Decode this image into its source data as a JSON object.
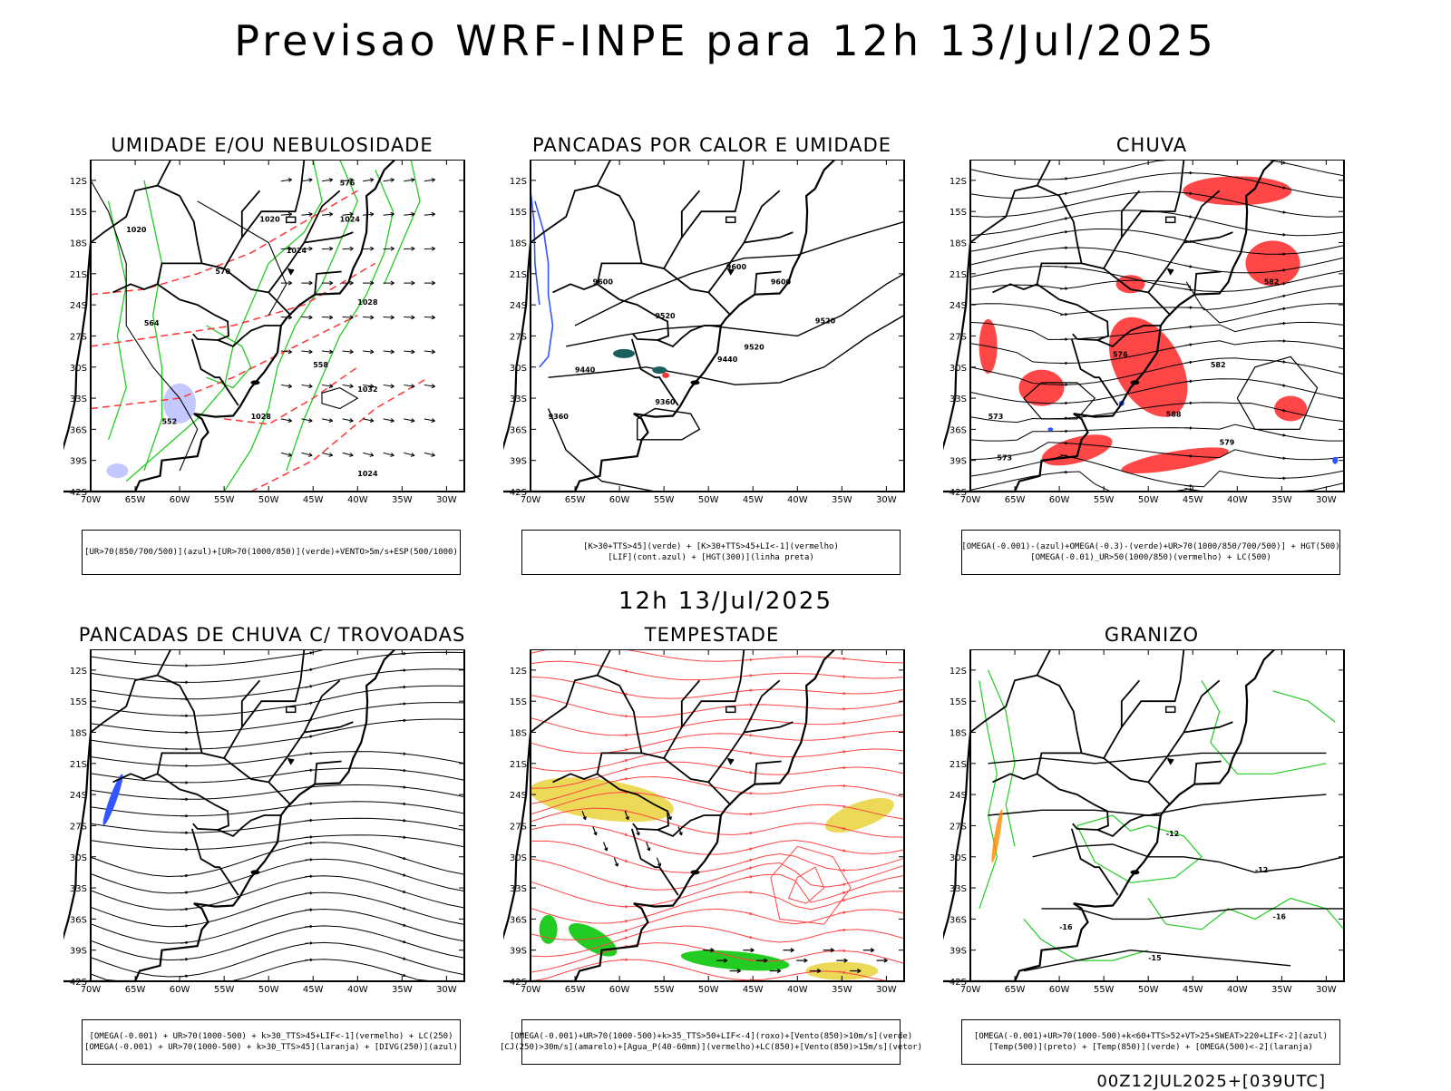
{
  "page": {
    "title": "Previsao WRF-INPE  para 12h 13/Jul/2025",
    "subtitle": "12h 13/Jul/2025",
    "footer": "00Z12JUL2025+[039UTC]"
  },
  "axes": {
    "lat_labels": [
      "12S",
      "15S",
      "18S",
      "21S",
      "24S",
      "27S",
      "30S",
      "33S",
      "36S",
      "39S",
      "42S"
    ],
    "lon_labels": [
      "70W",
      "65W",
      "60W",
      "55W",
      "50W",
      "45W",
      "40W",
      "35W",
      "30W"
    ]
  },
  "panels": [
    {
      "title": "UMIDADE E/OU NEBULOSIDADE",
      "caption": [
        "[UR>70(850/700/500)](azul)+[UR>70(1000/850)](verde)+VENTO>5m/s+ESP(500/1000)"
      ],
      "labels": [
        "1020",
        "1020",
        "1024",
        "1024",
        "1028",
        "1032",
        "1028",
        "1024",
        "570",
        "576",
        "564",
        "558",
        "552"
      ],
      "colors": {
        "isobar": "#000000",
        "humid_low": "#22cc22",
        "humid_high": "#3355ff",
        "thickness": "#ff3333",
        "shade": "#aab0ff"
      }
    },
    {
      "title": "PANCADAS POR CALOR E UMIDADE",
      "caption": [
        "[K>30+TTS>45](verde) + [K>30+TTS>45+LI<-1](vermelho)",
        "[LIF](cont.azul) + [HGT(300)](linha preta)"
      ],
      "labels": [
        "9600",
        "9600",
        "9600",
        "9520",
        "9520",
        "9440",
        "9440",
        "9360",
        "9360",
        "9520"
      ],
      "colors": {
        "hgt": "#000000",
        "lif": "#3355ff",
        "convection": "#1b5e5e",
        "instab": "#ff3333"
      }
    },
    {
      "title": "CHUVA",
      "caption": [
        "[OMEGA(-0.001)-(azul)+OMEGA(-0.3)-(verde)+UR>70(1000/850/700/500)] + HGT(500)",
        "[OMEGA(-0.01)_UR>50(1000/850)(vermelho) + LC(500)"
      ],
      "labels": [
        "582",
        "588",
        "573",
        "576",
        "582",
        "579",
        "573"
      ],
      "colors": {
        "rain": "#ff3333",
        "stream": "#000000",
        "omega": "#3355ff"
      }
    },
    {
      "title": "PANCADAS DE CHUVA C/ TROVOADAS",
      "caption": [
        "[OMEGA(-0.001) + UR>70(1000-500) + k>30_TTS>45+LIF<-1](vermelho) + LC(250)",
        "[OMEGA(-0.001) + UR>70(1000-500) + k>30_TTS>45](laranja) + [DIVG(250)](azul)"
      ],
      "labels": [],
      "colors": {
        "stream": "#000000",
        "divg": "#3355ff"
      }
    },
    {
      "title": "TEMPESTADE",
      "caption": [
        "[OMEGA(-0.001)+UR>70(1000-500)+k>35_TTS>50+LIF<-4](roxo)+[Vento(850)>10m/s](verde)",
        "[CJ(250)>30m/s](amarelo)+[Agua_P(40-60mm)](vermelho)+LC(850)+[Vento(850)>15m/s](vetor)"
      ],
      "labels": [],
      "colors": {
        "stream": "#ff4444",
        "jet": "#e8d23a",
        "wind": "#22cc22",
        "vector": "#000000"
      }
    },
    {
      "title": "GRANIZO",
      "caption": [
        "[OMEGA(-0.001)+UR>70(1000-500)+k<60+TTS>52+VT>25+SWEAT>220+LIF<-2](azul)",
        "[Temp(500)](preto) + [Temp(850)](verde) + [OMEGA(500)<-2](laranja)"
      ],
      "labels": [
        "-12",
        "-12",
        "-16",
        "-16",
        "-15"
      ],
      "colors": {
        "temp500": "#000000",
        "temp850": "#22cc22",
        "omega": "#ff8800"
      }
    }
  ]
}
